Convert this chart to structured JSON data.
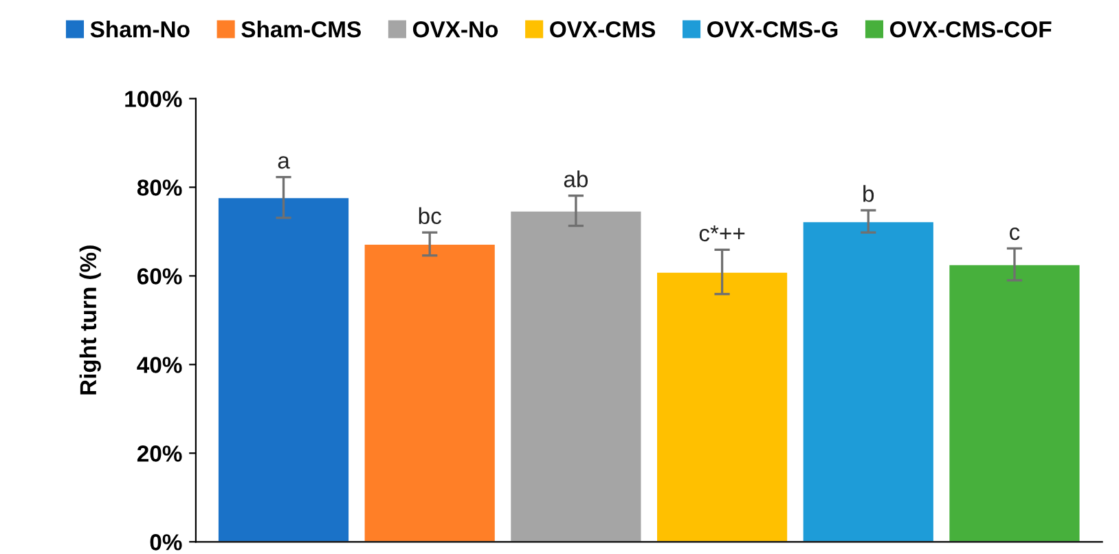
{
  "chart_data": {
    "type": "bar",
    "ylabel": "Right turn (%)",
    "categories": [
      null,
      null,
      null,
      null,
      null,
      null
    ],
    "series": [
      {
        "name": "Sham-No",
        "color": "#1a72c8",
        "values": [
          77.7,
          null,
          null,
          null,
          null,
          null
        ],
        "errors": [
          4.6,
          null,
          null,
          null,
          null,
          null
        ],
        "value_labels": [
          "a",
          null,
          null,
          null,
          null,
          null
        ]
      },
      {
        "name": "Sham-CMS",
        "color": "#ff7f27",
        "values": [
          null,
          67.2,
          null,
          null,
          null,
          null
        ],
        "errors": [
          null,
          2.6,
          null,
          null,
          null,
          null
        ],
        "value_labels": [
          null,
          "bc",
          null,
          null,
          null,
          null
        ]
      },
      {
        "name": "OVX-No",
        "color": "#a5a5a5",
        "values": [
          null,
          null,
          74.7,
          null,
          null,
          null
        ],
        "errors": [
          null,
          null,
          3.4,
          null,
          null,
          null
        ],
        "value_labels": [
          null,
          null,
          "ab",
          null,
          null,
          null
        ]
      },
      {
        "name": "OVX-CMS",
        "color": "#ffc000",
        "values": [
          null,
          null,
          null,
          60.9,
          null,
          null
        ],
        "errors": [
          null,
          null,
          null,
          5.0,
          null,
          null
        ],
        "value_labels": [
          null,
          null,
          null,
          "c*++",
          null,
          null
        ]
      },
      {
        "name": "OVX-CMS-G",
        "color": "#1e9cd8",
        "values": [
          null,
          null,
          null,
          null,
          72.3,
          null
        ],
        "errors": [
          null,
          null,
          null,
          null,
          2.5,
          null
        ],
        "value_labels": [
          null,
          null,
          null,
          null,
          "b",
          null
        ]
      },
      {
        "name": "OVX-CMS-COF",
        "color": "#47b03c",
        "values": [
          null,
          null,
          null,
          null,
          null,
          62.6
        ],
        "errors": [
          null,
          null,
          null,
          null,
          null,
          3.6
        ],
        "value_labels": [
          null,
          null,
          null,
          null,
          null,
          "c"
        ]
      }
    ],
    "ylim": [
      0,
      100
    ],
    "yticks": [
      {
        "value": 0,
        "label": "0%"
      },
      {
        "value": 20,
        "label": "20%"
      },
      {
        "value": 40,
        "label": "40%"
      },
      {
        "value": 60,
        "label": "60%"
      },
      {
        "value": 80,
        "label": "80%"
      },
      {
        "value": 100,
        "label": "100%"
      }
    ],
    "tick_labels": "y",
    "grid": false,
    "legend": "top"
  }
}
